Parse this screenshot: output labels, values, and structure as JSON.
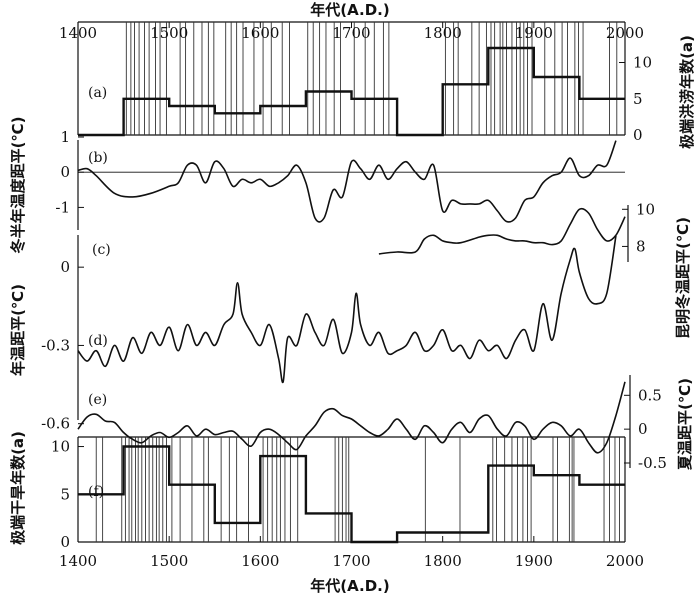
{
  "chart_data": [
    {
      "id": "a",
      "type": "line",
      "panel_label": "(a)",
      "ylabel": "极端洪涝年数(a)",
      "ylim": [
        0,
        12
      ],
      "yticks": [
        0,
        5,
        10
      ],
      "xlim": [
        1400,
        2000
      ],
      "decadal_counts": {
        "x": [
          1400,
          1450,
          1500,
          1550,
          1600,
          1650,
          1700,
          1750,
          1800,
          1850,
          1900,
          1950,
          2000
        ],
        "values": [
          0,
          5,
          4,
          3,
          4,
          6,
          5,
          0,
          7,
          12,
          8,
          5,
          5
        ]
      },
      "event_years": [
        1453,
        1458,
        1462,
        1467,
        1473,
        1478,
        1485,
        1490,
        1497,
        1512,
        1518,
        1527,
        1536,
        1543,
        1549,
        1562,
        1568,
        1574,
        1581,
        1593,
        1603,
        1612,
        1624,
        1632,
        1652,
        1658,
        1665,
        1672,
        1681,
        1688,
        1703,
        1715,
        1725,
        1735,
        1741,
        1803,
        1812,
        1817,
        1832,
        1840,
        1848,
        1853,
        1857,
        1863,
        1866,
        1870,
        1876,
        1881,
        1885,
        1889,
        1893,
        1898,
        1912,
        1923,
        1931,
        1937,
        1945,
        1949,
        1954,
        1983,
        1991
      ]
    },
    {
      "id": "b",
      "type": "line",
      "panel_label": "(b)",
      "ylabel": "冬半年温度距平(℃)",
      "ylim": [
        -1.5,
        1.2
      ],
      "yticks": [
        -1,
        0,
        1
      ],
      "reference_line": 0,
      "x": [
        1400,
        1410,
        1420,
        1440,
        1460,
        1480,
        1500,
        1510,
        1520,
        1530,
        1540,
        1550,
        1560,
        1570,
        1580,
        1590,
        1600,
        1610,
        1620,
        1630,
        1640,
        1650,
        1660,
        1670,
        1680,
        1690,
        1700,
        1710,
        1720,
        1730,
        1740,
        1750,
        1760,
        1770,
        1780,
        1790,
        1800,
        1810,
        1820,
        1830,
        1840,
        1850,
        1860,
        1870,
        1880,
        1890,
        1900,
        1910,
        1920,
        1930,
        1940,
        1950,
        1960,
        1970,
        1980,
        1990
      ],
      "values": [
        0.05,
        0.1,
        -0.1,
        -0.6,
        -0.7,
        -0.6,
        -0.4,
        -0.3,
        0.2,
        0.2,
        -0.3,
        0.3,
        0.1,
        -0.4,
        -0.2,
        -0.3,
        -0.2,
        -0.4,
        -0.3,
        -0.1,
        0.2,
        -0.3,
        -1.3,
        -1.3,
        -0.5,
        -0.7,
        0.3,
        0.1,
        -0.2,
        0.2,
        -0.2,
        0.1,
        0.3,
        0.0,
        -0.2,
        0.2,
        -1.1,
        -0.8,
        -0.9,
        -0.9,
        -0.9,
        -0.8,
        -1.1,
        -1.4,
        -1.3,
        -0.8,
        -0.7,
        -0.3,
        -0.1,
        0.0,
        0.4,
        -0.1,
        -0.1,
        0.2,
        0.2,
        0.9
      ]
    },
    {
      "id": "c",
      "type": "line",
      "panel_label": "(c)",
      "ylabel": "昆明冬温距平(℃)",
      "ylim": [
        7,
        10.5
      ],
      "yticks": [
        8,
        10
      ],
      "x": [
        1730,
        1750,
        1770,
        1780,
        1790,
        1800,
        1810,
        1820,
        1840,
        1850,
        1860,
        1870,
        1880,
        1890,
        1900,
        1910,
        1920,
        1930,
        1940,
        1950,
        1960,
        1970,
        1980,
        1990,
        2000
      ],
      "values": [
        7.6,
        7.7,
        7.7,
        8.4,
        8.6,
        8.3,
        8.2,
        8.2,
        8.5,
        8.6,
        8.6,
        8.4,
        8.3,
        8.3,
        8.2,
        8.2,
        8.1,
        8.3,
        9.2,
        10.0,
        9.8,
        8.9,
        8.3,
        8.6,
        9.6
      ]
    },
    {
      "id": "d",
      "type": "line",
      "panel_label": "(d)",
      "ylabel": "年温距平(℃)",
      "ylim": [
        -0.72,
        0.2
      ],
      "yticks": [
        -0.6,
        -0.3,
        0
      ],
      "x": [
        1400,
        1410,
        1420,
        1430,
        1440,
        1450,
        1460,
        1470,
        1480,
        1490,
        1500,
        1510,
        1520,
        1530,
        1540,
        1550,
        1560,
        1570,
        1575,
        1580,
        1590,
        1600,
        1610,
        1620,
        1625,
        1630,
        1640,
        1650,
        1660,
        1670,
        1680,
        1690,
        1700,
        1705,
        1710,
        1720,
        1730,
        1740,
        1750,
        1760,
        1770,
        1780,
        1790,
        1800,
        1810,
        1820,
        1830,
        1840,
        1850,
        1860,
        1870,
        1880,
        1890,
        1900,
        1910,
        1920,
        1930,
        1940,
        1945,
        1950,
        1960,
        1970,
        1980,
        1990
      ],
      "values": [
        -0.32,
        -0.36,
        -0.32,
        -0.38,
        -0.3,
        -0.36,
        -0.27,
        -0.33,
        -0.25,
        -0.3,
        -0.23,
        -0.32,
        -0.22,
        -0.3,
        -0.25,
        -0.3,
        -0.22,
        -0.18,
        -0.06,
        -0.18,
        -0.25,
        -0.3,
        -0.22,
        -0.35,
        -0.44,
        -0.27,
        -0.3,
        -0.18,
        -0.25,
        -0.3,
        -0.2,
        -0.33,
        -0.25,
        -0.1,
        -0.22,
        -0.3,
        -0.25,
        -0.33,
        -0.32,
        -0.3,
        -0.25,
        -0.32,
        -0.3,
        -0.24,
        -0.32,
        -0.3,
        -0.35,
        -0.28,
        -0.32,
        -0.3,
        -0.35,
        -0.28,
        -0.24,
        -0.32,
        -0.14,
        -0.28,
        -0.1,
        0.03,
        0.07,
        -0.02,
        -0.12,
        -0.14,
        -0.1,
        0.12
      ]
    },
    {
      "id": "e",
      "type": "line",
      "panel_label": "(e)",
      "ylabel": "夏温距平(℃)",
      "ylim": [
        -0.5,
        0.8
      ],
      "yticks": [
        -0.5,
        0,
        0.5
      ],
      "x": [
        1400,
        1410,
        1420,
        1430,
        1440,
        1450,
        1460,
        1470,
        1480,
        1490,
        1500,
        1510,
        1520,
        1530,
        1540,
        1550,
        1560,
        1570,
        1580,
        1590,
        1600,
        1610,
        1620,
        1630,
        1640,
        1650,
        1660,
        1670,
        1680,
        1690,
        1700,
        1710,
        1720,
        1730,
        1740,
        1750,
        1760,
        1770,
        1780,
        1790,
        1800,
        1810,
        1820,
        1830,
        1840,
        1850,
        1860,
        1870,
        1880,
        1890,
        1900,
        1910,
        1920,
        1930,
        1940,
        1950,
        1960,
        1970,
        1980,
        1990,
        2000
      ],
      "values": [
        0.0,
        0.18,
        0.22,
        0.12,
        0.1,
        -0.05,
        -0.15,
        -0.2,
        -0.1,
        -0.05,
        -0.12,
        -0.05,
        0.05,
        -0.1,
        0.0,
        -0.08,
        -0.05,
        -0.03,
        -0.15,
        -0.25,
        -0.05,
        0.0,
        -0.08,
        -0.2,
        -0.3,
        -0.1,
        0.05,
        0.25,
        0.3,
        0.2,
        0.15,
        0.05,
        -0.05,
        -0.1,
        0.0,
        0.15,
        0.0,
        -0.15,
        0.05,
        -0.05,
        -0.2,
        0.0,
        0.1,
        -0.05,
        0.15,
        0.2,
        0.0,
        -0.1,
        0.1,
        0.05,
        -0.15,
        0.0,
        0.1,
        0.05,
        -0.1,
        0.0,
        -0.2,
        -0.35,
        -0.2,
        0.2,
        0.7
      ]
    },
    {
      "id": "f",
      "type": "line",
      "panel_label": "(f)",
      "ylabel": "极端干旱年数(a)",
      "ylim": [
        0,
        11
      ],
      "yticks": [
        0,
        5,
        10
      ],
      "xlim": [
        1400,
        2000
      ],
      "xticks": [
        1400,
        1500,
        1600,
        1700,
        1800,
        1900,
        2000
      ],
      "xlabel": "年代(A.D.)",
      "decadal_counts": {
        "x": [
          1400,
          1450,
          1500,
          1550,
          1600,
          1650,
          1700,
          1750,
          1850,
          1900,
          1950,
          2000
        ],
        "values": [
          5,
          10,
          6,
          2,
          9,
          3,
          0,
          1,
          8,
          7,
          6,
          6
        ]
      },
      "event_years": [
        1420,
        1427,
        1448,
        1452,
        1456,
        1459,
        1463,
        1466,
        1470,
        1474,
        1478,
        1482,
        1486,
        1489,
        1493,
        1497,
        1503,
        1512,
        1525,
        1538,
        1543,
        1557,
        1566,
        1574,
        1587,
        1603,
        1608,
        1613,
        1618,
        1622,
        1627,
        1633,
        1641,
        1682,
        1686,
        1690,
        1694,
        1697,
        1781,
        1819,
        1855,
        1859,
        1868,
        1876,
        1882,
        1888,
        1893,
        1897,
        1921,
        1926,
        1939,
        1942,
        1944,
        1977,
        1983,
        1989,
        1994
      ]
    }
  ],
  "top_axis": {
    "xlabel": "年代(A.D.)",
    "xticks": [
      1400,
      1500,
      1600,
      1700,
      1800,
      1900,
      2000
    ]
  }
}
